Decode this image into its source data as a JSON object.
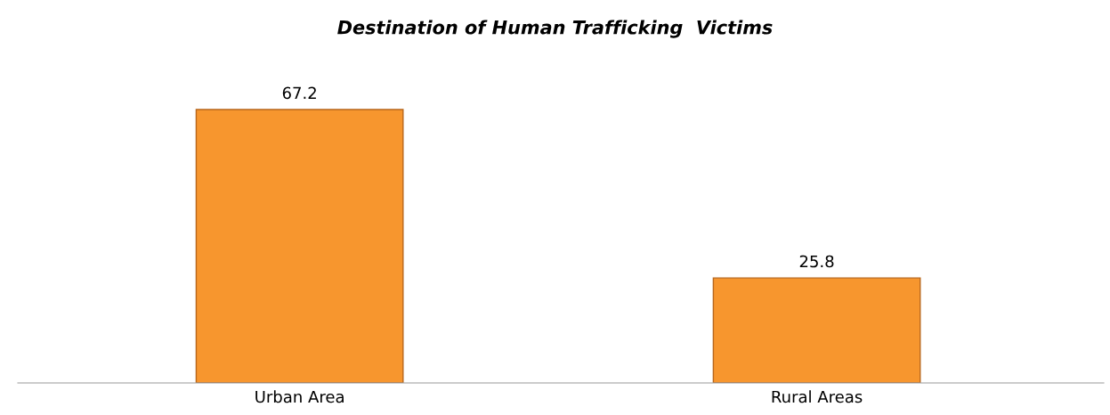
{
  "chart_data": {
    "type": "bar",
    "title": "Destination of Human Trafficking  Victims",
    "categories": [
      "Urban Area",
      "Rural Areas"
    ],
    "values": [
      67.2,
      25.8
    ],
    "color": "#f7962e",
    "data_labels": true,
    "grid": false,
    "legend": false
  }
}
